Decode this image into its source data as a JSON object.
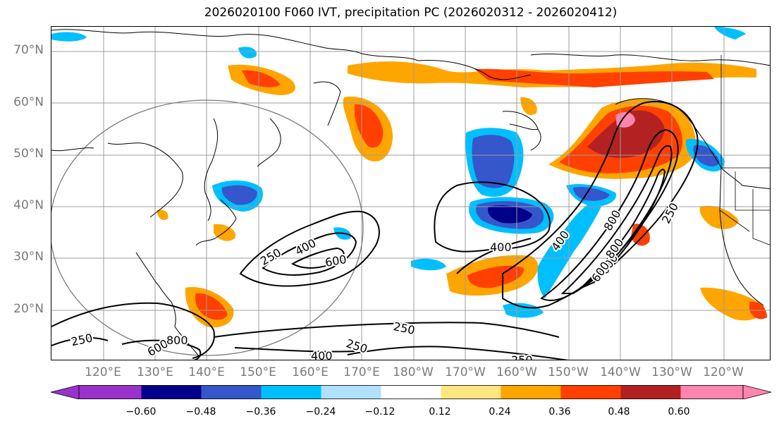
{
  "title": "2026020100 F060 IVT, precipitation PC (2026020312 - 2026020412)",
  "lat_labels": [
    "70°N",
    "60°N",
    "50°N",
    "40°N",
    "30°N",
    "20°N"
  ],
  "lon_labels": [
    "120°E",
    "130°E",
    "140°E",
    "150°E",
    "160°E",
    "170°E",
    "180°W",
    "170°W",
    "160°W",
    "150°W",
    "140°W",
    "130°W",
    "120°W"
  ],
  "contour_labels": [
    "250",
    "400",
    "600",
    "400",
    "800",
    "600",
    "800",
    "400",
    "250",
    "250",
    "250",
    "600",
    "800",
    "250",
    "400",
    "250",
    "600"
  ],
  "colorbar": {
    "ticks": [
      "−0.60",
      "−0.48",
      "−0.36",
      "−0.24",
      "−0.12",
      "0.12",
      "0.24",
      "0.36",
      "0.48",
      "0.60"
    ],
    "colors": [
      "#9a33cc",
      "#00008b",
      "#3656cc",
      "#00bfff",
      "#b0e2ff",
      "#ffffff",
      "#ffe680",
      "#ffa500",
      "#ff4000",
      "#b22222",
      "#ff85b0"
    ]
  }
}
